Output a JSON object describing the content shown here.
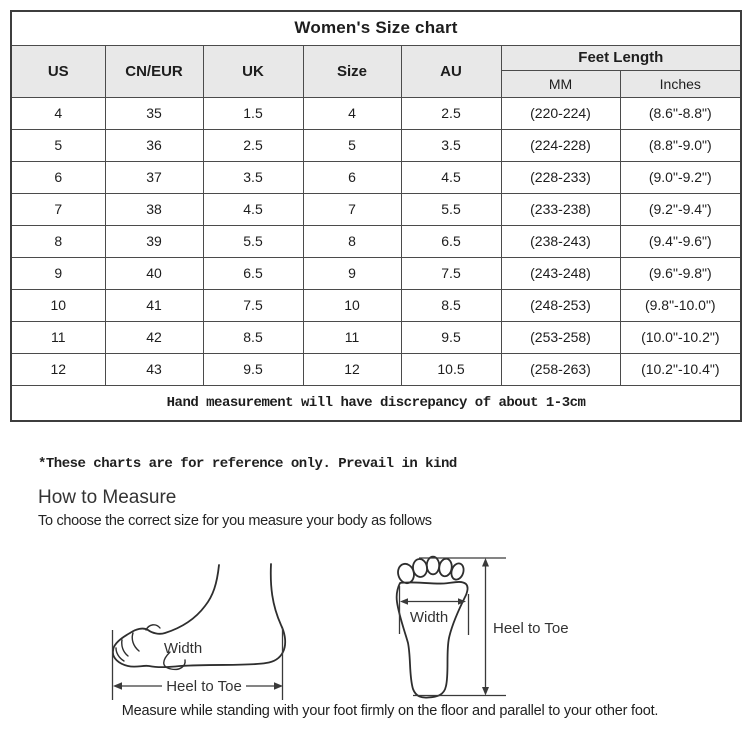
{
  "table": {
    "title": "Women's Size chart",
    "columns": [
      "US",
      "CN/EUR",
      "UK",
      "Size",
      "AU"
    ],
    "feet_length_header": "Feet Length",
    "feet_length_sub": [
      "MM",
      "Inches"
    ],
    "rows": [
      [
        "4",
        "35",
        "1.5",
        "4",
        "2.5",
        "(220-224)",
        "(8.6\"-8.8\")"
      ],
      [
        "5",
        "36",
        "2.5",
        "5",
        "3.5",
        "(224-228)",
        "(8.8\"-9.0\")"
      ],
      [
        "6",
        "37",
        "3.5",
        "6",
        "4.5",
        "(228-233)",
        "(9.0\"-9.2\")"
      ],
      [
        "7",
        "38",
        "4.5",
        "7",
        "5.5",
        "(233-238)",
        "(9.2\"-9.4\")"
      ],
      [
        "8",
        "39",
        "5.5",
        "8",
        "6.5",
        "(238-243)",
        "(9.4\"-9.6\")"
      ],
      [
        "9",
        "40",
        "6.5",
        "9",
        "7.5",
        "(243-248)",
        "(9.6\"-9.8\")"
      ],
      [
        "10",
        "41",
        "7.5",
        "10",
        "8.5",
        "(248-253)",
        "(9.8\"-10.0\")"
      ],
      [
        "11",
        "42",
        "8.5",
        "11",
        "9.5",
        "(253-258)",
        "(10.0\"-10.2\")"
      ],
      [
        "12",
        "43",
        "9.5",
        "12",
        "10.5",
        "(258-263)",
        "(10.2\"-10.4\")"
      ]
    ],
    "footnote": "Hand measurement will have discrepancy of about 1-3cm"
  },
  "notes": {
    "reference": "*These charts are for reference only. Prevail in kind",
    "how_to_measure_title": "How to Measure",
    "how_to_measure_sub": "To choose the correct size for you measure your body as follows",
    "bottom": "Measure while standing with your foot firmly on the floor and parallel to your other foot."
  },
  "diagram": {
    "side_view_width_label": "Width",
    "side_view_length_label": "Heel to Toe",
    "top_view_width_label": "Width",
    "top_view_length_label": "Heel to Toe"
  },
  "colors": {
    "header_bg": "#e8e8e8",
    "table_border": "#4b4b4b",
    "outer_border": "#3d3d3d",
    "text": "#1d1d1d",
    "diagram_line": "#2e2e2e"
  }
}
